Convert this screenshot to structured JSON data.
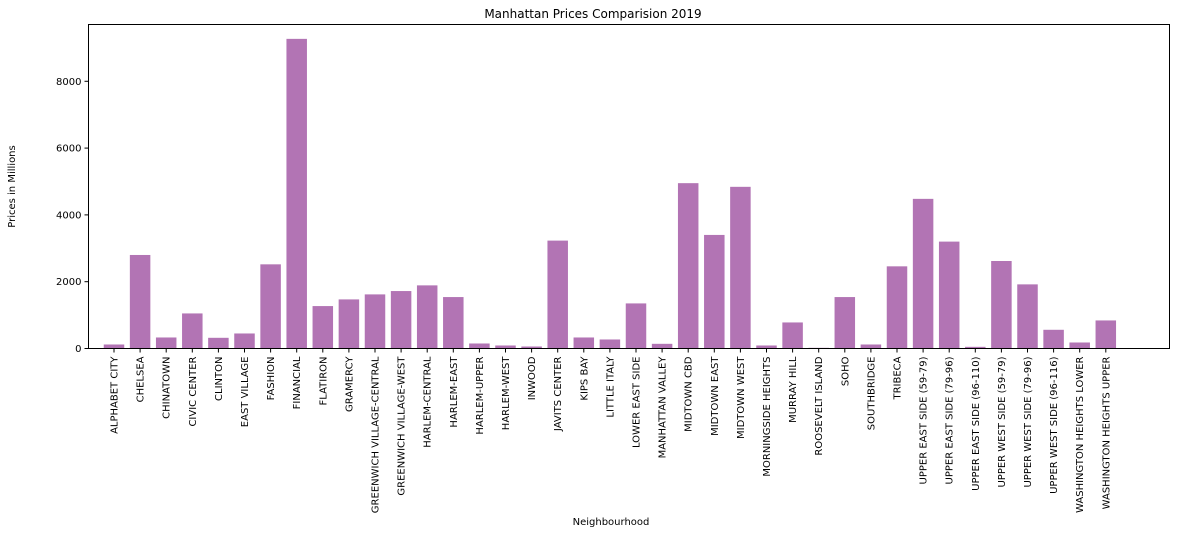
{
  "chart_data": {
    "type": "bar",
    "title": "Manhattan Prices Comparision 2019",
    "xlabel": "Neighbourhood",
    "ylabel": "Prices in Millions",
    "ylim": [
      0,
      9700
    ],
    "yticks": [
      0,
      2000,
      4000,
      6000,
      8000
    ],
    "grid": false,
    "legend": "none",
    "bar_color": "#b274b4",
    "categories": [
      "ALPHABET CITY",
      "CHELSEA",
      "CHINATOWN",
      "CIVIC CENTER",
      "CLINTON",
      "EAST VILLAGE",
      "FASHION",
      "FINANCIAL",
      "FLATIRON",
      "GRAMERCY",
      "GREENWICH VILLAGE-CENTRAL",
      "GREENWICH VILLAGE-WEST",
      "HARLEM-CENTRAL",
      "HARLEM-EAST",
      "HARLEM-UPPER",
      "HARLEM-WEST",
      "INWOOD",
      "JAVITS CENTER",
      "KIPS BAY",
      "LITTLE ITALY",
      "LOWER EAST SIDE",
      "MANHATTAN VALLEY",
      "MIDTOWN CBD",
      "MIDTOWN EAST",
      "MIDTOWN WEST",
      "MORNINGSIDE HEIGHTS",
      "MURRAY HILL",
      "ROOSEVELT ISLAND",
      "SOHO",
      "SOUTHBRIDGE",
      "TRIBECA",
      "UPPER EAST SIDE (59-79)",
      "UPPER EAST SIDE (79-96)",
      "UPPER EAST SIDE (96-110)",
      "UPPER WEST SIDE (59-79)",
      "UPPER WEST SIDE (79-96)",
      "UPPER WEST SIDE (96-116)",
      "WASHINGTON HEIGHTS LOWER",
      "WASHINGTON HEIGHTS UPPER"
    ],
    "values": [
      120,
      2800,
      330,
      1050,
      320,
      450,
      2520,
      9270,
      1270,
      1470,
      1620,
      1720,
      1890,
      1540,
      150,
      90,
      60,
      3230,
      330,
      270,
      1350,
      140,
      4950,
      3400,
      4840,
      90,
      780,
      20,
      1540,
      120,
      2460,
      4480,
      3200,
      50,
      2620,
      1920,
      560,
      180,
      840
    ]
  }
}
